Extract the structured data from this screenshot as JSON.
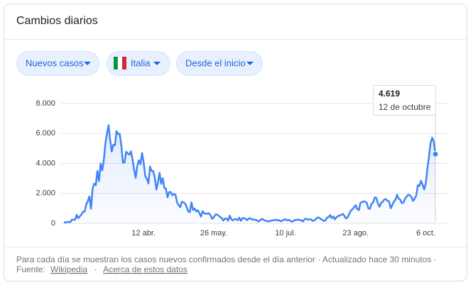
{
  "header": {
    "title": "Cambios diarios"
  },
  "filters": [
    "Nuevos casos",
    "Italia",
    "Desde el inicio"
  ],
  "chart_data": {
    "type": "line",
    "categories": [
      null,
      null,
      null,
      null,
      null,
      null,
      null,
      null,
      null,
      null,
      null,
      null,
      null,
      null,
      null,
      null,
      null,
      null,
      null,
      null,
      null,
      null,
      null,
      null,
      null,
      null,
      null,
      null,
      null,
      null,
      null,
      null,
      null,
      null,
      null,
      null,
      null,
      null,
      null,
      null,
      null,
      null,
      null,
      null,
      null,
      null,
      null,
      null,
      null,
      null,
      "12 abr.",
      null,
      null,
      null,
      null,
      null,
      null,
      null,
      null,
      null,
      null,
      null,
      null,
      null,
      null,
      null,
      null,
      null,
      null,
      null,
      null,
      null,
      null,
      null,
      null,
      null,
      null,
      null,
      null,
      null,
      null,
      null,
      null,
      null,
      null,
      null,
      null,
      null,
      null,
      null,
      null,
      null,
      null,
      null,
      "26 may.",
      null,
      null,
      null,
      null,
      null,
      null,
      null,
      null,
      null,
      null,
      null,
      null,
      null,
      null,
      null,
      null,
      null,
      null,
      null,
      null,
      null,
      null,
      null,
      null,
      null,
      null,
      null,
      null,
      null,
      null,
      null,
      null,
      null,
      null,
      null,
      null,
      null,
      null,
      null,
      null,
      null,
      null,
      null,
      null,
      "10 jul.",
      null,
      null,
      null,
      null,
      null,
      null,
      null,
      null,
      null,
      null,
      null,
      null,
      null,
      null,
      null,
      null,
      null,
      null,
      null,
      null,
      null,
      null,
      null,
      null,
      null,
      null,
      null,
      null,
      null,
      null,
      null,
      null,
      null,
      null,
      null,
      null,
      null,
      null,
      null,
      null,
      null,
      null,
      null,
      "23 ago.",
      null,
      null,
      null,
      null,
      null,
      null,
      null,
      null,
      null,
      null,
      null,
      null,
      null,
      null,
      null,
      null,
      null,
      null,
      null,
      null,
      null,
      null,
      null,
      null,
      null,
      null,
      null,
      null,
      null,
      null,
      null,
      null,
      null,
      null,
      null,
      null,
      null,
      null,
      null,
      null,
      null,
      null,
      null,
      "6 oct.",
      null,
      null,
      null,
      null,
      null,
      null
    ],
    "series": [
      {
        "name": "Nuevos casos",
        "color": "#4285f4",
        "values": [
          62,
          53,
          97,
          93,
          78,
          250,
          238,
          240,
          566,
          342,
          466,
          587,
          769,
          778,
          1247,
          1492,
          1797,
          977,
          2313,
          2651,
          2547,
          3497,
          2823,
          4000,
          3526,
          4207,
          5322,
          5986,
          6557,
          5560,
          4789,
          5249,
          5210,
          6153,
          5959,
          5974,
          5217,
          4050,
          4053,
          4782,
          4668,
          4585,
          4805,
          4316,
          3599,
          3039,
          3836,
          4204,
          3951,
          4694,
          4092,
          3153,
          2972,
          2667,
          3786,
          3493,
          3491,
          3047,
          2256,
          2729,
          3370,
          2646,
          3021,
          2357,
          2324,
          1739,
          2091,
          2086,
          1872,
          1965,
          1900,
          1389,
          1221,
          1075,
          1444,
          1401,
          1327,
          1083,
          802,
          744,
          1402,
          888,
          992,
          789,
          875,
          675,
          451,
          813,
          665,
          642,
          652,
          669,
          531,
          300,
          397,
          584,
          593,
          516,
          416,
          355,
          178,
          318,
          321,
          177,
          518,
          270,
          197,
          280,
          283,
          202,
          379,
          163,
          346,
          338,
          301,
          210,
          329,
          333,
          251,
          262,
          224,
          218,
          122,
          190,
          296,
          259,
          175,
          174,
          126,
          142,
          187,
          201,
          223,
          235,
          192,
          208,
          138,
          193,
          229,
          276,
          188,
          234,
          169,
          114,
          162,
          230,
          233,
          249,
          219,
          190,
          129,
          282,
          306,
          252,
          275,
          255,
          170,
          181,
          289,
          386,
          379,
          295,
          239,
          159,
          190,
          384,
          402,
          552,
          347,
          463,
          259,
          412,
          481,
          523,
          574,
          629,
          479,
          320,
          403,
          642,
          845,
          947,
          1071,
          1210,
          953,
          878,
          1367,
          1411,
          1462,
          1444,
          1365,
          996,
          978,
          1326,
          1397,
          1733,
          1695,
          1297,
          1108,
          1370,
          1434,
          1597,
          1616,
          1501,
          1458,
          1008,
          1229,
          1452,
          1585,
          1907,
          1638,
          1587,
          1350,
          1392,
          1640,
          1786,
          1912,
          1869,
          1766,
          1494,
          1648,
          1851,
          2548,
          2499,
          2844,
          2578,
          2257,
          2677,
          3678,
          4458,
          5372,
          5724,
          5456,
          4619
        ]
      }
    ],
    "ylim": [
      0,
      8000
    ],
    "yticks": [
      0,
      {
        "value": 2000,
        "label": "2.000"
      },
      {
        "value": 4000,
        "label": "4.000"
      },
      {
        "value": 6000,
        "label": "6.000"
      },
      {
        "value": 8000,
        "label": "8.000"
      }
    ],
    "grid": true,
    "tooltip": {
      "label": "4.619",
      "date": "12 de octubre"
    }
  },
  "footer": {
    "note": "Para cada día se muestran los casos nuevos confirmados desde el día anterior · Actualizado hace 30 minutos ·",
    "source_label": "Fuente:",
    "source": "Wikipedia",
    "separator": "·",
    "about": "Acerca de estos datos"
  }
}
